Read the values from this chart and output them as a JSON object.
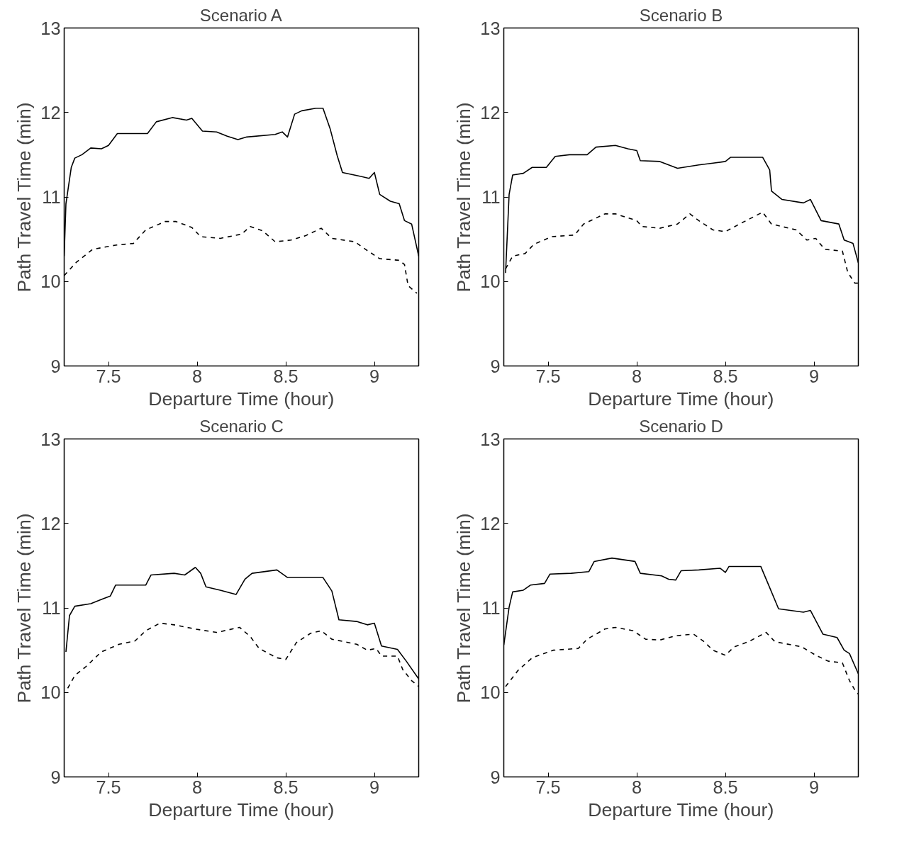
{
  "chart_data": [
    {
      "type": "line",
      "title": "Scenario A",
      "xlabel": "Departure Time (hour)",
      "ylabel": "Path Travel Time (min)",
      "xlim": [
        7.25,
        9.25
      ],
      "ylim": [
        9,
        13
      ],
      "xticks": [
        7.5,
        8,
        8.5,
        9
      ],
      "yticks": [
        9,
        10,
        11,
        12,
        13
      ],
      "series": [
        {
          "color": "#000000",
          "line_style": "solid",
          "x": [
            7.25,
            7.26,
            7.29,
            7.31,
            7.35,
            7.4,
            7.46,
            7.5,
            7.55,
            7.64,
            7.72,
            7.77,
            7.86,
            7.94,
            7.97,
            8.03,
            8.11,
            8.17,
            8.23,
            8.28,
            8.44,
            8.48,
            8.51,
            8.55,
            8.59,
            8.67,
            8.71,
            8.75,
            8.79,
            8.82,
            8.91,
            8.97,
            9.0,
            9.03,
            9.09,
            9.14,
            9.17,
            9.21,
            9.25
          ],
          "values": [
            10.3,
            10.92,
            11.35,
            11.46,
            11.5,
            11.58,
            11.57,
            11.61,
            11.75,
            11.75,
            11.75,
            11.89,
            11.94,
            11.91,
            11.93,
            11.78,
            11.77,
            11.72,
            11.68,
            11.71,
            11.74,
            11.77,
            11.71,
            11.98,
            12.02,
            12.05,
            12.05,
            11.81,
            11.49,
            11.29,
            11.25,
            11.22,
            11.29,
            11.03,
            10.95,
            10.92,
            10.72,
            10.68,
            10.3
          ]
        },
        {
          "color": "#000000",
          "line_style": "dashed",
          "x": [
            7.25,
            7.32,
            7.41,
            7.54,
            7.64,
            7.71,
            7.82,
            7.88,
            7.97,
            8.02,
            8.13,
            8.25,
            8.3,
            8.37,
            8.44,
            8.53,
            8.61,
            8.7,
            8.76,
            8.89,
            8.95,
            9.03,
            9.14,
            9.17,
            9.19,
            9.24
          ],
          "values": [
            10.07,
            10.23,
            10.38,
            10.43,
            10.45,
            10.61,
            10.71,
            10.71,
            10.64,
            10.53,
            10.51,
            10.56,
            10.65,
            10.6,
            10.47,
            10.49,
            10.54,
            10.63,
            10.51,
            10.47,
            10.38,
            10.27,
            10.25,
            10.2,
            9.95,
            9.86
          ]
        }
      ]
    },
    {
      "type": "line",
      "title": "Scenario B",
      "xlabel": "Departure Time (hour)",
      "ylabel": "Path Travel Time (min)",
      "xlim": [
        7.25,
        9.25
      ],
      "ylim": [
        9,
        13
      ],
      "xticks": [
        7.5,
        8,
        8.5,
        9
      ],
      "yticks": [
        9,
        10,
        11,
        12,
        13
      ],
      "series": [
        {
          "color": "#000000",
          "line_style": "solid",
          "x": [
            7.26,
            7.28,
            7.3,
            7.36,
            7.41,
            7.49,
            7.54,
            7.62,
            7.72,
            7.77,
            7.88,
            7.95,
            8.0,
            8.02,
            8.13,
            8.18,
            8.23,
            8.35,
            8.43,
            8.5,
            8.53,
            8.71,
            8.75,
            8.76,
            8.82,
            8.94,
            8.98,
            9.04,
            9.14,
            9.17,
            9.22,
            9.25
          ],
          "values": [
            10.1,
            11.03,
            11.26,
            11.28,
            11.35,
            11.35,
            11.48,
            11.5,
            11.5,
            11.59,
            11.61,
            11.57,
            11.55,
            11.43,
            11.42,
            11.38,
            11.34,
            11.38,
            11.4,
            11.42,
            11.47,
            11.47,
            11.32,
            11.07,
            10.97,
            10.93,
            10.97,
            10.72,
            10.68,
            10.49,
            10.45,
            10.22
          ]
        },
        {
          "color": "#000000",
          "line_style": "dashed",
          "x": [
            7.26,
            7.3,
            7.37,
            7.42,
            7.52,
            7.65,
            7.7,
            7.82,
            7.88,
            8.0,
            8.03,
            8.13,
            8.23,
            8.3,
            8.35,
            8.43,
            8.5,
            8.58,
            8.71,
            8.76,
            8.9,
            8.96,
            9.01,
            9.06,
            9.16,
            9.19,
            9.23,
            9.25
          ],
          "values": [
            10.15,
            10.3,
            10.33,
            10.44,
            10.53,
            10.55,
            10.68,
            10.8,
            10.8,
            10.72,
            10.65,
            10.63,
            10.68,
            10.8,
            10.72,
            10.61,
            10.59,
            10.68,
            10.82,
            10.68,
            10.61,
            10.49,
            10.51,
            10.38,
            10.36,
            10.11,
            9.98,
            9.98
          ]
        }
      ]
    },
    {
      "type": "line",
      "title": "Scenario C",
      "xlabel": "Departure Time (hour)",
      "ylabel": "Path Travel Time (min)",
      "xlim": [
        7.25,
        9.25
      ],
      "ylim": [
        9,
        13
      ],
      "xticks": [
        7.5,
        8,
        8.5,
        9
      ],
      "yticks": [
        9,
        10,
        11,
        12,
        13
      ],
      "series": [
        {
          "color": "#000000",
          "line_style": "solid",
          "x": [
            7.26,
            7.28,
            7.31,
            7.4,
            7.46,
            7.51,
            7.54,
            7.71,
            7.74,
            7.87,
            7.93,
            7.99,
            8.02,
            8.05,
            8.13,
            8.22,
            8.27,
            8.31,
            8.45,
            8.51,
            8.6,
            8.71,
            8.76,
            8.8,
            8.9,
            8.96,
            9.0,
            9.04,
            9.13,
            9.18,
            9.25
          ],
          "values": [
            10.48,
            10.91,
            11.02,
            11.05,
            11.1,
            11.14,
            11.27,
            11.27,
            11.39,
            11.41,
            11.39,
            11.48,
            11.41,
            11.25,
            11.21,
            11.16,
            11.34,
            11.41,
            11.45,
            11.36,
            11.36,
            11.36,
            11.2,
            10.86,
            10.84,
            10.8,
            10.82,
            10.55,
            10.51,
            10.37,
            10.16
          ]
        },
        {
          "color": "#000000",
          "line_style": "dashed",
          "x": [
            7.27,
            7.31,
            7.37,
            7.46,
            7.56,
            7.65,
            7.71,
            7.79,
            7.87,
            7.99,
            8.11,
            8.24,
            8.3,
            8.35,
            8.45,
            8.5,
            8.56,
            8.64,
            8.7,
            8.76,
            8.9,
            8.96,
            9.01,
            9.04,
            9.13,
            9.16,
            9.21,
            9.25
          ],
          "values": [
            10.05,
            10.2,
            10.3,
            10.48,
            10.57,
            10.61,
            10.73,
            10.82,
            10.8,
            10.75,
            10.71,
            10.77,
            10.66,
            10.52,
            10.41,
            10.39,
            10.59,
            10.7,
            10.73,
            10.63,
            10.57,
            10.5,
            10.52,
            10.43,
            10.43,
            10.27,
            10.14,
            10.07
          ]
        }
      ]
    },
    {
      "type": "line",
      "title": "Scenario D",
      "xlabel": "Departure Time (hour)",
      "ylabel": "Path Travel Time (min)",
      "xlim": [
        7.25,
        9.25
      ],
      "ylim": [
        9,
        13
      ],
      "xticks": [
        7.5,
        8,
        8.5,
        9
      ],
      "yticks": [
        9,
        10,
        11,
        12,
        13
      ],
      "series": [
        {
          "color": "#000000",
          "line_style": "solid",
          "x": [
            7.25,
            7.28,
            7.3,
            7.36,
            7.4,
            7.48,
            7.51,
            7.63,
            7.73,
            7.76,
            7.86,
            7.99,
            8.02,
            8.14,
            8.18,
            8.22,
            8.25,
            8.35,
            8.47,
            8.5,
            8.52,
            8.7,
            8.74,
            8.8,
            8.94,
            8.98,
            9.05,
            9.13,
            9.17,
            9.2,
            9.25
          ],
          "values": [
            10.56,
            11.01,
            11.19,
            11.21,
            11.27,
            11.29,
            11.4,
            11.41,
            11.43,
            11.55,
            11.59,
            11.55,
            11.41,
            11.38,
            11.34,
            11.33,
            11.44,
            11.45,
            11.47,
            11.42,
            11.49,
            11.49,
            11.29,
            10.99,
            10.95,
            10.97,
            10.69,
            10.65,
            10.5,
            10.46,
            10.22
          ]
        },
        {
          "color": "#000000",
          "line_style": "dashed",
          "x": [
            7.26,
            7.33,
            7.41,
            7.53,
            7.67,
            7.72,
            7.82,
            7.88,
            7.98,
            8.05,
            8.13,
            8.22,
            8.32,
            8.38,
            8.43,
            8.5,
            8.55,
            8.63,
            8.73,
            8.78,
            8.93,
            9.01,
            9.08,
            9.16,
            9.2,
            9.23,
            9.25
          ],
          "values": [
            10.07,
            10.26,
            10.41,
            10.5,
            10.52,
            10.63,
            10.75,
            10.77,
            10.73,
            10.63,
            10.62,
            10.67,
            10.69,
            10.6,
            10.5,
            10.44,
            10.54,
            10.6,
            10.71,
            10.6,
            10.54,
            10.44,
            10.37,
            10.35,
            10.14,
            10.03,
            9.98
          ]
        }
      ]
    }
  ]
}
